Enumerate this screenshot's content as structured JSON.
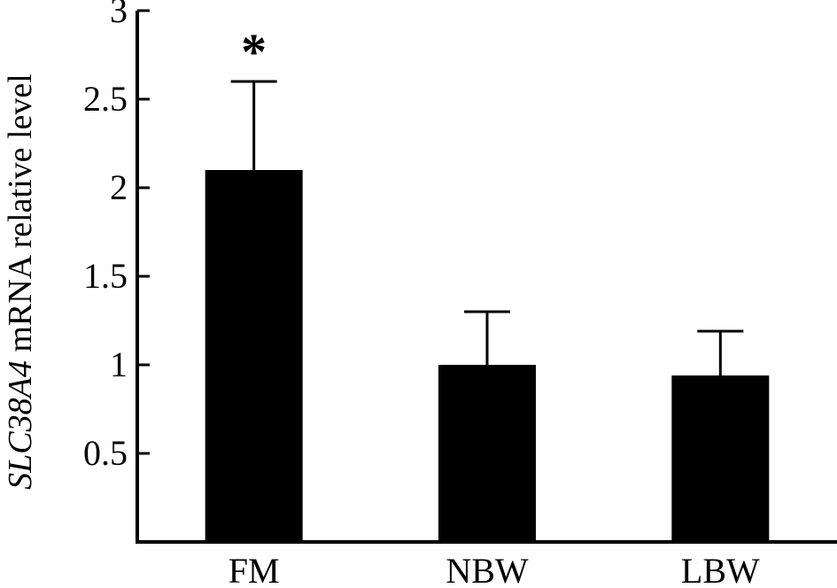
{
  "chart_data": {
    "type": "bar",
    "categories": [
      "FM",
      "NBW",
      "LBW"
    ],
    "values": [
      2.1,
      1.0,
      0.94
    ],
    "error_upper": [
      2.6,
      1.3,
      1.19
    ],
    "annotations": [
      "*",
      "",
      ""
    ],
    "ylabel": {
      "gene": "SLC38A4",
      "rest": " mRNA relative level"
    },
    "xlabel": "",
    "title": "",
    "ylim": [
      0,
      3
    ],
    "yticks": [
      0.5,
      1,
      1.5,
      2,
      2.5,
      3
    ],
    "ytick_labels": [
      "0.5",
      "1",
      "1.5",
      "2",
      "2.5",
      "3"
    ],
    "grid": false,
    "legend": "none",
    "bar_color": "#000000"
  }
}
